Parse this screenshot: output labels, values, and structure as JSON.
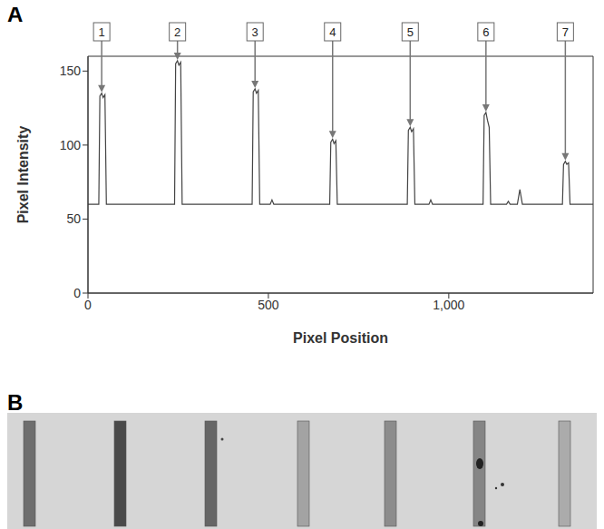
{
  "chart_data": {
    "type": "line",
    "x_label": "Pixel Position",
    "y_label": "Pixel Intensity",
    "color": "#444444",
    "grid": false,
    "xlim": [
      0,
      1400
    ],
    "xticks": [
      0,
      500,
      {
        "value": 1000,
        "label": "1,000"
      }
    ],
    "ylim": [
      0,
      160
    ],
    "yticks": [
      0,
      50,
      100,
      150
    ],
    "x": [
      0,
      30,
      33,
      38,
      42,
      47,
      51,
      240,
      243,
      248,
      252,
      257,
      261,
      455,
      458,
      463,
      467,
      472,
      476,
      505,
      510,
      515,
      670,
      673,
      678,
      682,
      687,
      691,
      885,
      888,
      893,
      897,
      902,
      906,
      945,
      950,
      955,
      1095,
      1098,
      1103,
      1107,
      1112,
      1116,
      1160,
      1165,
      1170,
      1190,
      1197,
      1204,
      1315,
      1318,
      1323,
      1327,
      1332,
      1336,
      1400
    ],
    "values": [
      60,
      60,
      133,
      135,
      132,
      134,
      60,
      60,
      155,
      157,
      154,
      156,
      60,
      60,
      136,
      138,
      135,
      137,
      60,
      60,
      63,
      60,
      60,
      102,
      104,
      101,
      103,
      60,
      60,
      110,
      112,
      109,
      111,
      60,
      60,
      63,
      60,
      60,
      120,
      122,
      117,
      112,
      60,
      60,
      62,
      60,
      60,
      70,
      60,
      60,
      87,
      89,
      87,
      88,
      60,
      60
    ],
    "annotations": [
      {
        "text": "1",
        "x": 38,
        "y": 135
      },
      {
        "text": "2",
        "x": 248,
        "y": 157
      },
      {
        "text": "3",
        "x": 463,
        "y": 138
      },
      {
        "text": "4",
        "x": 678,
        "y": 104
      },
      {
        "text": "5",
        "x": 893,
        "y": 112
      },
      {
        "text": "6",
        "x": 1103,
        "y": 122
      },
      {
        "text": "7",
        "x": 1323,
        "y": 89
      }
    ]
  },
  "panel_labels": [
    "A",
    "B"
  ],
  "strip_colors": [
    "#6e6e6e",
    "#4a4a4a",
    "#666666",
    "#a3a3a3",
    "#8c8c8c",
    "#858585",
    "#ababab"
  ]
}
